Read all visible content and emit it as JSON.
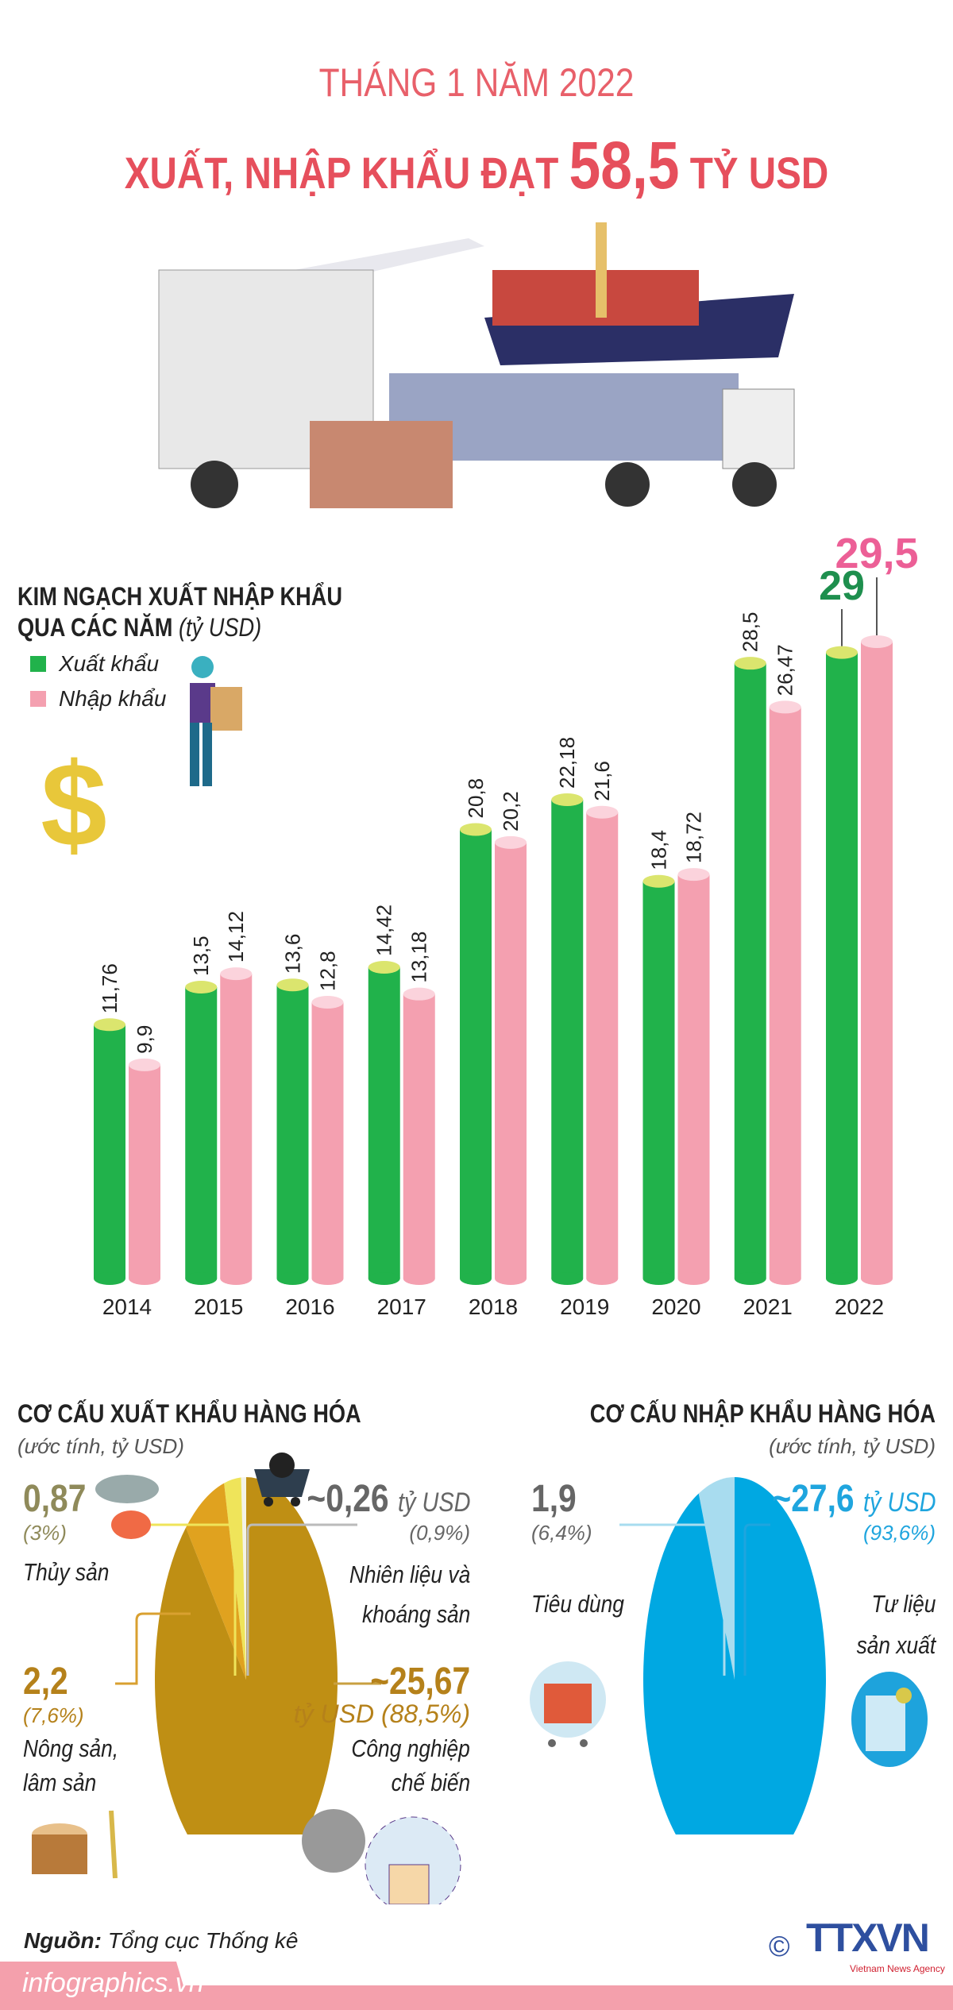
{
  "title": {
    "line1": "THÁNG 1 NĂM 2022",
    "line2_prefix": "XUẤT, NHẬP KHẨU ĐẠT",
    "line2_value": "58,5",
    "line2_suffix": "TỶ USD"
  },
  "colors": {
    "title": "#e64f5c",
    "export": "#21b24b",
    "import": "#f4a0b0",
    "export_label_2022": "#1e8f4e",
    "import_label_2022": "#ec5f96",
    "export_pie": "#bf8f14",
    "import_pie": "#00a8e2"
  },
  "chart_data": {
    "type": "bar",
    "title": "KIM NGẠCH XUẤT NHẬP KHẨU QUA CÁC NĂM",
    "title_line1": "KIM NGẠCH XUẤT NHẬP KHẨU",
    "title_line2": "QUA CÁC NĂM",
    "unit": "(tỷ USD)",
    "categories": [
      "2014",
      "2015",
      "2016",
      "2017",
      "2018",
      "2019",
      "2020",
      "2021",
      "2022"
    ],
    "series": [
      {
        "name": "Xuất khẩu",
        "values": [
          11.76,
          13.5,
          13.6,
          14.42,
          20.8,
          22.18,
          18.4,
          28.5,
          29
        ],
        "labels": [
          "11,76",
          "13,5",
          "13,6",
          "14,42",
          "20,8",
          "22,18",
          "18,4",
          "28,5",
          "29"
        ]
      },
      {
        "name": "Nhập khẩu",
        "values": [
          9.9,
          14.12,
          12.8,
          13.18,
          20.2,
          21.6,
          18.72,
          26.47,
          29.5
        ],
        "labels": [
          "9,9",
          "14,12",
          "12,8",
          "13,18",
          "20,2",
          "21,6",
          "18,72",
          "26,47",
          "29,5"
        ]
      }
    ],
    "legend": "top-left",
    "ylim": [
      0,
      30
    ],
    "grid": false
  },
  "export_structure": {
    "title": "CƠ CẤU XUẤT KHẨU HÀNG HÓA",
    "subtitle": "(ước tính, tỷ USD)",
    "type": "pie",
    "slices": [
      {
        "name": "Nhiên liệu và khoáng sản",
        "name_l1": "Nhiên liệu và",
        "name_l2": "khoáng sản",
        "value": 0.26,
        "value_label": "~0,26",
        "unit": "tỷ USD",
        "percent": "(0,9%)",
        "color": "#f3f3e8"
      },
      {
        "name": "Thủy sản",
        "value": 0.87,
        "value_label": "0,87",
        "percent": "(3%)",
        "color": "#efe45a"
      },
      {
        "name": "Nông sản, lâm sản",
        "name_l1": "Nông sản,",
        "name_l2": "lâm sản",
        "value": 2.2,
        "value_label": "2,2",
        "percent": "(7,6%)",
        "color": "#e0a21f"
      },
      {
        "name": "Công nghiệp chế biến",
        "name_l1": "Công nghiệp",
        "name_l2": "chế biến",
        "value": 25.67,
        "value_label": "~25,67",
        "unit_percent": "tỷ USD (88,5%)",
        "color": "#bf8f14"
      }
    ]
  },
  "import_structure": {
    "title": "CƠ CẤU NHẬP KHẨU HÀNG HÓA",
    "subtitle": "(ước tính, tỷ USD)",
    "type": "pie",
    "slices": [
      {
        "name": "Tiêu dùng",
        "value": 1.9,
        "value_label": "1,9",
        "percent": "(6,4%)",
        "color": "#a8dcef"
      },
      {
        "name": "Tư liệu sản xuất",
        "name_l1": "Tư liệu",
        "name_l2": "sản xuất",
        "value": 27.6,
        "value_label": "~27,6",
        "unit": "tỷ USD",
        "percent": "(93,6%)",
        "color": "#00a8e2"
      }
    ]
  },
  "footer": {
    "source_label": "Nguồn:",
    "source": "Tổng cục Thống kê",
    "site": "infographics.vn",
    "logo": "TTXVN",
    "logo_sub": "Vietnam News Agency",
    "copyright": "©"
  }
}
